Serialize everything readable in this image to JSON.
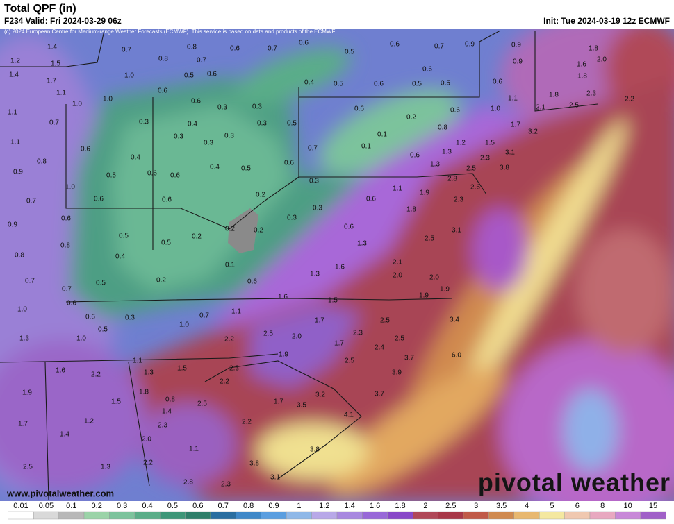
{
  "header": {
    "title": "Total QPF (in)",
    "valid": "F234 Valid: Fri 2024-03-29 06z",
    "init": "Init: Tue 2024-03-19 12z ECMWF",
    "credit": "(c) 2024 European Centre for Medium-range Weather Forecasts (ECMWF). This service is based on data and products of the ECMWF."
  },
  "map": {
    "labels": [
      "1.4",
      "1.2",
      "1.5",
      "0.7",
      "0.8",
      "0.6",
      "0.7",
      "0.6",
      "0.5",
      "0.6",
      "0.7",
      "0.9",
      "0.9",
      "1.8",
      "0.8",
      "0.7",
      "0.9",
      "2.0",
      "1.6",
      "1.4",
      "1.7",
      "1.0",
      "0.5",
      "0.6",
      "0.6",
      "1.8",
      "0.4",
      "0.5",
      "0.6",
      "0.5",
      "0.5",
      "0.6",
      "1.1",
      "0.6",
      "1.1",
      "1.8",
      "2.3",
      "1.0",
      "1.0",
      "0.6",
      "0.3",
      "0.3",
      "0.6",
      "0.6",
      "1.0",
      "2.1",
      "2.5",
      "2.2",
      "1.1",
      "0.7",
      "0.3",
      "0.4",
      "0.3",
      "0.5",
      "0.2",
      "0.8",
      "1.7",
      "1.1",
      "0.3",
      "0.3",
      "0.3",
      "0.1",
      "0.1",
      "1.2",
      "1.5",
      "3.2",
      "0.6",
      "0.7",
      "0.6",
      "1.3",
      "3.1",
      "0.8",
      "0.4",
      "0.4",
      "0.5",
      "0.6",
      "1.3",
      "2.5",
      "2.3",
      "3.8",
      "0.9",
      "0.5",
      "0.6",
      "0.6",
      "0.3",
      "1.1",
      "1.9",
      "2.8",
      "2.6",
      "1.0",
      "0.2",
      "2.3",
      "0.7",
      "0.6",
      "0.6",
      "0.6",
      "1.8",
      "0.6",
      "0.3",
      "0.3",
      "0.9",
      "0.2",
      "0.2",
      "0.6",
      "3.1",
      "0.5",
      "0.2",
      "2.5",
      "0.8",
      "0.5",
      "1.3",
      "0.8",
      "0.4",
      "0.1",
      "2.1",
      "1.6",
      "1.3",
      "2.0",
      "0.7",
      "0.5",
      "0.2",
      "0.6",
      "2.0",
      "0.7",
      "1.9",
      "1.6",
      "1.5",
      "1.9",
      "0.6",
      "1.0",
      "1.1",
      "0.6",
      "0.3",
      "0.7",
      "1.7",
      "2.5",
      "3.4",
      "1.0",
      "0.5",
      "2.5",
      "2.0",
      "2.3",
      "1.3",
      "1.0",
      "2.2",
      "1.7",
      "2.4",
      "2.5",
      "1.9",
      "2.5",
      "3.7",
      "6.0",
      "1.1",
      "1.6",
      "2.2",
      "1.3",
      "1.5",
      "2.3",
      "3.9",
      "2.2",
      "1.9",
      "1.8",
      "0.8",
      "3.2",
      "3.7",
      "1.5",
      "1.4",
      "2.5",
      "1.7",
      "3.5",
      "1.7",
      "1.2",
      "2.3",
      "2.2",
      "4.1",
      "1.4",
      "2.0",
      "3.8",
      "1.1",
      "2.5",
      "1.3",
      "2.2",
      "3.8",
      "2.8",
      "2.3",
      "3.1"
    ]
  },
  "colorbar": {
    "ticks": [
      "0.01",
      "0.05",
      "0.1",
      "0.2",
      "0.3",
      "0.4",
      "0.5",
      "0.6",
      "0.7",
      "0.8",
      "0.9",
      "1",
      "1.2",
      "1.4",
      "1.6",
      "1.8",
      "2",
      "2.5",
      "3",
      "3.5",
      "4",
      "5",
      "6",
      "8",
      "10",
      "15"
    ],
    "colors": [
      "#ffffff",
      "#d9d9d9",
      "#b8b8b8",
      "#9bd3a8",
      "#7cc39c",
      "#5aad88",
      "#3e9678",
      "#2f7f6a",
      "#2a6ea0",
      "#3f88c8",
      "#5a9ee0",
      "#8fb8e8",
      "#b8a8e8",
      "#a888e0",
      "#9868d8",
      "#8848c8",
      "#b04858",
      "#a83848",
      "#c05a48",
      "#d08a50",
      "#e8b870",
      "#f4e8a0",
      "#f0c8b0",
      "#e8a8c0",
      "#c888d8",
      "#a060c8"
    ]
  },
  "footer": {
    "url": "www.pivotalweather.com",
    "brand": "pivotal weather"
  }
}
